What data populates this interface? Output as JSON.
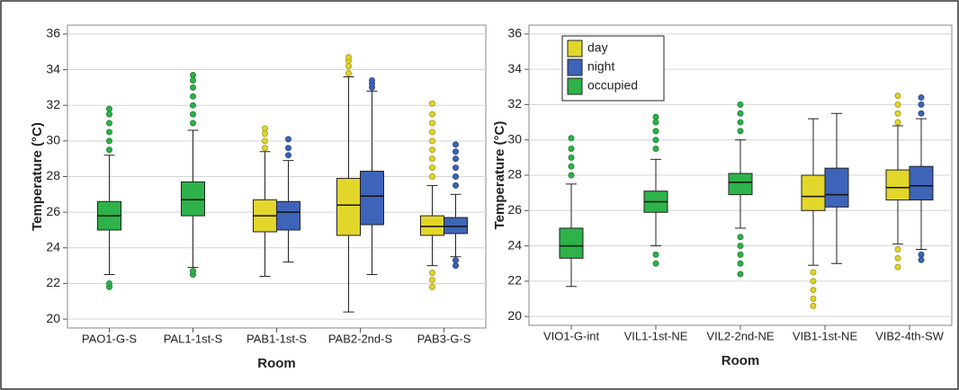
{
  "chart_data": [
    {
      "type": "box",
      "y_label": "Temperature (°C)",
      "x_label": "Room",
      "categories": [
        "PAO1-G-S",
        "PAL1-1st-S",
        "PAB1-1st-S",
        "PAB2-2nd-S",
        "PAB3-G-S"
      ],
      "ylim": [
        19.5,
        36.5
      ],
      "yticks": [
        20,
        22,
        24,
        26,
        28,
        30,
        32,
        34,
        36
      ],
      "grid": true,
      "series": [
        {
          "name": "day",
          "color": "#e3d62b",
          "values": [
            null,
            null,
            {
              "min": 22.4,
              "q1": 24.9,
              "median": 25.8,
              "q3": 26.7,
              "max": 29.4,
              "outliers": [
                29.6,
                30.0,
                30.4,
                30.7
              ]
            },
            {
              "min": 20.4,
              "q1": 24.7,
              "median": 26.4,
              "q3": 27.9,
              "max": 33.6,
              "outliers": [
                33.8,
                34.2,
                34.5,
                34.7
              ]
            },
            {
              "min": 23.0,
              "q1": 24.7,
              "median": 25.2,
              "q3": 25.8,
              "max": 27.5,
              "outliers": [
                21.8,
                22.2,
                22.6,
                28.0,
                28.5,
                29.0,
                29.5,
                30.0,
                30.5,
                31.0,
                31.5,
                32.1
              ]
            }
          ]
        },
        {
          "name": "night",
          "color": "#3d64b8",
          "values": [
            null,
            null,
            {
              "min": 23.2,
              "q1": 25.0,
              "median": 26.0,
              "q3": 26.6,
              "max": 28.9,
              "outliers": [
                29.2,
                29.6,
                30.1
              ]
            },
            {
              "min": 22.5,
              "q1": 25.3,
              "median": 26.9,
              "q3": 28.3,
              "max": 32.8,
              "outliers": [
                33.0,
                33.2,
                33.4
              ]
            },
            {
              "min": 23.5,
              "q1": 24.8,
              "median": 25.2,
              "q3": 25.7,
              "max": 27.0,
              "outliers": [
                23.0,
                23.3,
                27.5,
                28.0,
                28.5,
                29.0,
                29.4,
                29.8
              ]
            }
          ]
        },
        {
          "name": "occupied",
          "color": "#2db34a",
          "values": [
            {
              "min": 22.5,
              "q1": 25.0,
              "median": 25.8,
              "q3": 26.6,
              "max": 29.2,
              "outliers": [
                21.8,
                22.0,
                29.5,
                30.0,
                30.5,
                31.0,
                31.5,
                31.8
              ]
            },
            {
              "min": 22.9,
              "q1": 25.8,
              "median": 26.7,
              "q3": 27.7,
              "max": 30.6,
              "outliers": [
                22.5,
                22.7,
                31.0,
                31.5,
                32.0,
                32.5,
                33.0,
                33.4,
                33.7
              ]
            },
            null,
            null,
            null
          ]
        }
      ]
    },
    {
      "type": "box",
      "y_label": "Temperature (°C)",
      "x_label": "Room",
      "categories": [
        "VIO1-G-int",
        "VIL1-1st-NE",
        "VIL2-2nd-NE",
        "VIB1-1st-NE",
        "VIB2-4th-SW"
      ],
      "ylim": [
        19.5,
        36.5
      ],
      "yticks": [
        20,
        22,
        24,
        26,
        28,
        30,
        32,
        34,
        36
      ],
      "grid": true,
      "legend": "upper left",
      "series": [
        {
          "name": "day",
          "color": "#e3d62b",
          "values": [
            null,
            null,
            null,
            {
              "min": 22.9,
              "q1": 26.0,
              "median": 26.8,
              "q3": 28.0,
              "max": 31.2,
              "outliers": [
                20.6,
                21.0,
                21.5,
                22.0,
                22.5
              ]
            },
            {
              "min": 24.1,
              "q1": 26.6,
              "median": 27.3,
              "q3": 28.3,
              "max": 30.8,
              "outliers": [
                22.8,
                23.3,
                23.8,
                31.0,
                31.5,
                32.0,
                32.5
              ]
            }
          ]
        },
        {
          "name": "night",
          "color": "#3d64b8",
          "values": [
            null,
            null,
            null,
            {
              "min": 23.0,
              "q1": 26.2,
              "median": 26.9,
              "q3": 28.4,
              "max": 31.5,
              "outliers": []
            },
            {
              "min": 23.8,
              "q1": 26.6,
              "median": 27.4,
              "q3": 28.5,
              "max": 31.2,
              "outliers": [
                23.2,
                23.5,
                31.5,
                32.0,
                32.4
              ]
            }
          ]
        },
        {
          "name": "occupied",
          "color": "#2db34a",
          "values": [
            {
              "min": 21.7,
              "q1": 23.3,
              "median": 24.0,
              "q3": 25.0,
              "max": 27.5,
              "outliers": [
                28.0,
                28.5,
                29.0,
                29.5,
                30.1
              ]
            },
            {
              "min": 24.0,
              "q1": 25.9,
              "median": 26.5,
              "q3": 27.1,
              "max": 28.9,
              "outliers": [
                23.0,
                23.5,
                29.5,
                30.0,
                30.5,
                31.0,
                31.3
              ]
            },
            {
              "min": 25.0,
              "q1": 26.9,
              "median": 27.6,
              "q3": 28.1,
              "max": 30.0,
              "outliers": [
                22.4,
                23.0,
                23.5,
                24.0,
                24.5,
                30.5,
                31.0,
                31.5,
                32.0
              ]
            },
            null,
            null
          ]
        }
      ]
    }
  ]
}
